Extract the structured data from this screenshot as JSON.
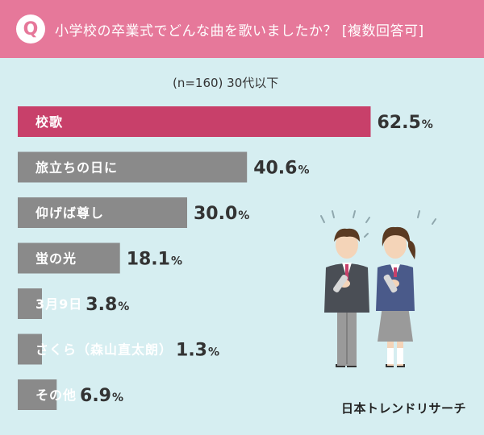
{
  "header": {
    "badge": "Q",
    "title": "小学校の卒業式でどんな曲を歌いましたか？ [複数回答可]"
  },
  "subtitle": "(n=160) 30代以下",
  "brand": "日本トレンドリサーチ",
  "colors": {
    "header_bg": "#e6789a",
    "background": "#d6eef1",
    "highlight_bar": "#c8406a",
    "bar": "#8a8a8a"
  },
  "chart_data": {
    "type": "bar",
    "orientation": "horizontal",
    "title": "小学校の卒業式でどんな曲を歌いましたか？ [複数回答可]",
    "subtitle": "(n=160) 30代以下",
    "unit": "%",
    "xlim": [
      0,
      100
    ],
    "categories": [
      "校歌",
      "旅立ちの日に",
      "仰げば尊し",
      "蛍の光",
      "3月9日",
      "さくら（森山直太朗）",
      "その他"
    ],
    "values": [
      62.5,
      40.6,
      30.0,
      18.1,
      3.8,
      1.3,
      6.9
    ],
    "value_labels": [
      "62.5",
      "40.6",
      "30.0",
      "18.1",
      "3.8",
      "1.3",
      "6.9"
    ],
    "highlight_index": 0
  }
}
